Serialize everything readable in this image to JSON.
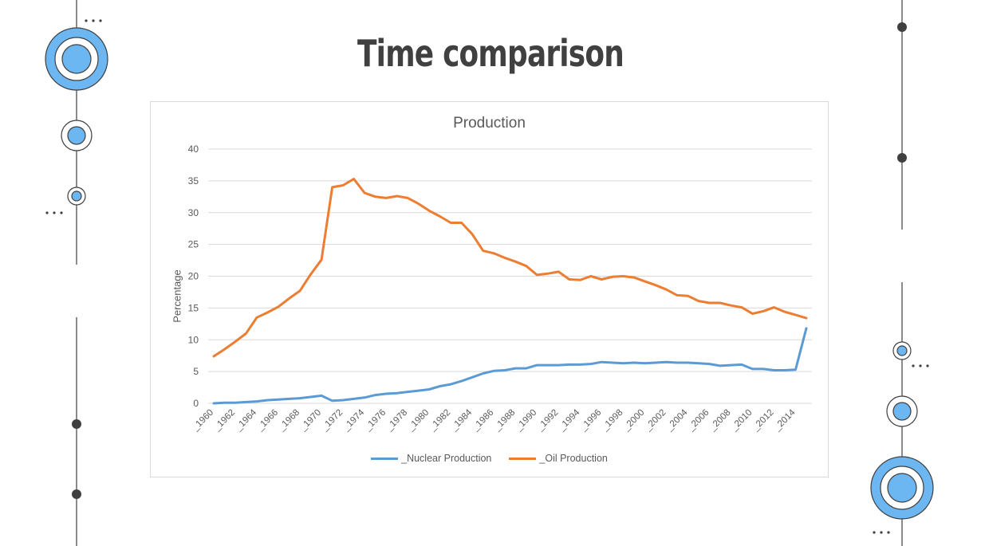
{
  "slide": {
    "title": "Time comparison"
  },
  "colors": {
    "accent_blue": "#6cb6f2",
    "dark": "#3f3f3f",
    "nuclear": "#5b9bd5",
    "oil": "#ed7d31"
  },
  "chart_data": {
    "type": "line",
    "title": "Production",
    "xlabel": "",
    "ylabel": "Percentage",
    "ylim": [
      0,
      40
    ],
    "yticks": [
      0,
      5,
      10,
      15,
      20,
      25,
      30,
      35,
      40
    ],
    "grid": true,
    "legend_position": "bottom",
    "categories": [
      "_1960",
      "_1961",
      "_1962",
      "_1963",
      "_1964",
      "_1965",
      "_1966",
      "_1967",
      "_1968",
      "_1969",
      "_1970",
      "_1971",
      "_1972",
      "_1973",
      "_1974",
      "_1975",
      "_1976",
      "_1977",
      "_1978",
      "_1979",
      "_1980",
      "_1981",
      "_1982",
      "_1983",
      "_1984",
      "_1985",
      "_1986",
      "_1987",
      "_1988",
      "_1989",
      "_1990",
      "_1991",
      "_1992",
      "_1993",
      "_1994",
      "_1995",
      "_1996",
      "_1997",
      "_1998",
      "_1999",
      "_2000",
      "_2001",
      "_2002",
      "_2003",
      "_2004",
      "_2005",
      "_2006",
      "_2007",
      "_2008",
      "_2009",
      "_2010",
      "_2011",
      "_2012",
      "_2013",
      "_2014",
      "_2015"
    ],
    "tick_labels": [
      "_1960",
      "_1962",
      "_1964",
      "_1966",
      "_1968",
      "_1970",
      "_1972",
      "_1974",
      "_1976",
      "_1978",
      "_1980",
      "_1982",
      "_1984",
      "_1986",
      "_1988",
      "_1990",
      "_1992",
      "_1994",
      "_1996",
      "_1998",
      "_2000",
      "_2002",
      "_2004",
      "_2006",
      "_2008",
      "_2010",
      "_2012",
      "_2014"
    ],
    "series": [
      {
        "name": "_Nuclear Production",
        "color": "#5b9bd5",
        "values": [
          0.0,
          0.1,
          0.1,
          0.2,
          0.3,
          0.5,
          0.6,
          0.7,
          0.8,
          1.0,
          1.2,
          0.4,
          0.5,
          0.7,
          0.9,
          1.3,
          1.5,
          1.6,
          1.8,
          2.0,
          2.2,
          2.7,
          3.0,
          3.5,
          4.1,
          4.7,
          5.1,
          5.2,
          5.5,
          5.5,
          6.0,
          6.0,
          6.0,
          6.1,
          6.1,
          6.2,
          6.5,
          6.4,
          6.3,
          6.4,
          6.3,
          6.4,
          6.5,
          6.4,
          6.4,
          6.3,
          6.2,
          5.9,
          6.0,
          6.1,
          5.4,
          5.4,
          5.2,
          5.2,
          5.3,
          11.8
        ]
      },
      {
        "name": "_Oil Production",
        "color": "#ed7d31",
        "values": [
          7.4,
          8.5,
          9.7,
          11.0,
          13.5,
          14.3,
          15.2,
          16.5,
          17.7,
          20.3,
          22.6,
          34.0,
          34.3,
          35.3,
          33.1,
          32.5,
          32.3,
          32.6,
          32.3,
          31.4,
          30.3,
          29.4,
          28.4,
          28.4,
          26.6,
          24.0,
          23.6,
          22.9,
          22.3,
          21.6,
          20.2,
          20.4,
          20.7,
          19.5,
          19.4,
          20.0,
          19.5,
          19.9,
          20.0,
          19.8,
          19.2,
          18.6,
          17.9,
          17.0,
          16.9,
          16.1,
          15.8,
          15.8,
          15.4,
          15.1,
          14.1,
          14.5,
          15.1,
          14.4,
          13.9,
          13.4
        ]
      }
    ]
  }
}
